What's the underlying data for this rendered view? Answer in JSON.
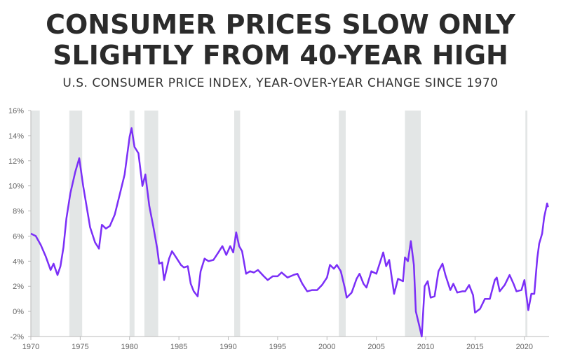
{
  "chart_data": {
    "type": "line",
    "title": [
      "CONSUMER PRICES SLOW ONLY",
      "SLIGHTLY FROM 40-YEAR HIGH"
    ],
    "subtitle": "U.S. CONSUMER PRICE INDEX, YEAR-OVER-YEAR CHANGE SINCE 1970",
    "xlim": [
      1970,
      2022.5
    ],
    "xticks": [
      1970,
      1975,
      1980,
      1985,
      1990,
      1995,
      2000,
      2005,
      2010,
      2015,
      2020
    ],
    "ylim": [
      -2,
      16
    ],
    "yticks": [
      {
        "value": -2,
        "label": "-2%"
      },
      {
        "value": 0,
        "label": "0%"
      },
      {
        "value": 2,
        "label": "2%"
      },
      {
        "value": 4,
        "label": "4%"
      },
      {
        "value": 6,
        "label": "6%"
      },
      {
        "value": 8,
        "label": "8%"
      },
      {
        "value": 10,
        "label": "10%"
      },
      {
        "value": 12,
        "label": "12%"
      },
      {
        "value": 14,
        "label": "14%"
      },
      {
        "value": 16,
        "label": "16%"
      }
    ],
    "recessions": [
      [
        1970.0,
        1970.9
      ],
      [
        1973.9,
        1975.2
      ],
      [
        1980.0,
        1980.5
      ],
      [
        1981.5,
        1982.9
      ],
      [
        1990.6,
        1991.2
      ],
      [
        2001.2,
        2001.9
      ],
      [
        2007.9,
        2009.5
      ],
      [
        2020.1,
        2020.3
      ]
    ],
    "recession_color": "#e3e6e6",
    "series": [
      {
        "color": "#7b2ff7",
        "x": [
          1970.0,
          1970.5,
          1971.0,
          1971.5,
          1972.0,
          1972.3,
          1972.7,
          1973.0,
          1973.3,
          1973.6,
          1974.0,
          1974.5,
          1974.9,
          1975.3,
          1975.6,
          1976.0,
          1976.5,
          1976.9,
          1977.2,
          1977.6,
          1978.0,
          1978.5,
          1979.0,
          1979.5,
          1980.0,
          1980.2,
          1980.5,
          1980.9,
          1981.3,
          1981.6,
          1982.0,
          1982.4,
          1982.8,
          1983.0,
          1983.3,
          1983.5,
          1984.0,
          1984.3,
          1984.8,
          1985.2,
          1985.5,
          1985.9,
          1986.2,
          1986.5,
          1986.9,
          1987.2,
          1987.6,
          1988.0,
          1988.5,
          1989.0,
          1989.4,
          1989.8,
          1990.2,
          1990.5,
          1990.8,
          1991.1,
          1991.4,
          1991.8,
          1992.2,
          1992.6,
          1993.0,
          1993.6,
          1994.0,
          1994.5,
          1995.0,
          1995.4,
          1996.0,
          1996.6,
          1997.0,
          1997.5,
          1998.0,
          1998.5,
          1999.0,
          1999.5,
          2000.0,
          2000.3,
          2000.7,
          2001.0,
          2001.4,
          2001.8,
          2002.0,
          2002.5,
          2003.0,
          2003.3,
          2003.7,
          2004.0,
          2004.5,
          2005.0,
          2005.7,
          2006.0,
          2006.3,
          2006.8,
          2007.2,
          2007.7,
          2007.9,
          2008.2,
          2008.5,
          2008.8,
          2009.0,
          2009.4,
          2009.6,
          2009.9,
          2010.2,
          2010.5,
          2010.9,
          2011.3,
          2011.7,
          2012.0,
          2012.5,
          2012.8,
          2013.2,
          2013.7,
          2014.0,
          2014.4,
          2014.8,
          2015.0,
          2015.5,
          2016.0,
          2016.5,
          2017.0,
          2017.2,
          2017.5,
          2018.0,
          2018.5,
          2018.9,
          2019.2,
          2019.7,
          2020.0,
          2020.4,
          2020.7,
          2021.0,
          2021.3,
          2021.5,
          2021.8,
          2022.0,
          2022.3,
          2022.4
        ],
        "values": [
          6.2,
          6.0,
          5.3,
          4.4,
          3.3,
          3.8,
          2.9,
          3.6,
          5.1,
          7.4,
          9.4,
          11.1,
          12.2,
          10.0,
          8.6,
          6.7,
          5.5,
          5.0,
          6.9,
          6.6,
          6.8,
          7.7,
          9.3,
          10.9,
          13.9,
          14.6,
          13.1,
          12.6,
          10.0,
          10.9,
          8.4,
          6.8,
          5.0,
          3.8,
          3.9,
          2.5,
          4.2,
          4.8,
          4.2,
          3.7,
          3.5,
          3.6,
          2.2,
          1.6,
          1.2,
          3.2,
          4.2,
          4.0,
          4.1,
          4.7,
          5.2,
          4.5,
          5.2,
          4.7,
          6.3,
          5.2,
          4.8,
          3.0,
          3.2,
          3.1,
          3.3,
          2.8,
          2.5,
          2.8,
          2.8,
          3.1,
          2.7,
          2.9,
          3.0,
          2.2,
          1.6,
          1.7,
          1.7,
          2.1,
          2.7,
          3.7,
          3.4,
          3.7,
          3.2,
          1.9,
          1.1,
          1.5,
          2.6,
          3.0,
          2.2,
          1.9,
          3.2,
          3.0,
          4.7,
          3.6,
          4.1,
          1.4,
          2.6,
          2.4,
          4.3,
          4.0,
          5.6,
          3.7,
          0.0,
          -1.3,
          -2.0,
          2.0,
          2.4,
          1.1,
          1.2,
          3.2,
          3.8,
          2.9,
          1.7,
          2.2,
          1.5,
          1.6,
          1.6,
          2.1,
          1.3,
          -0.1,
          0.2,
          1.0,
          1.0,
          2.5,
          2.7,
          1.6,
          2.1,
          2.9,
          2.2,
          1.6,
          1.7,
          2.5,
          0.1,
          1.4,
          1.4,
          4.2,
          5.4,
          6.2,
          7.5,
          8.6,
          8.3
        ]
      }
    ]
  }
}
